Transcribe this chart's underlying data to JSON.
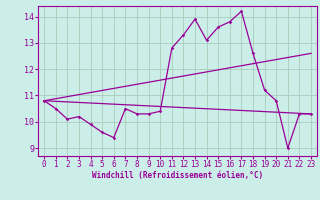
{
  "xlabel": "Windchill (Refroidissement éolien,°C)",
  "ylabel": "",
  "xlim": [
    -0.5,
    23.5
  ],
  "ylim": [
    8.7,
    14.4
  ],
  "yticks": [
    9,
    10,
    11,
    12,
    13,
    14
  ],
  "xticks": [
    0,
    1,
    2,
    3,
    4,
    5,
    6,
    7,
    8,
    9,
    10,
    11,
    12,
    13,
    14,
    15,
    16,
    17,
    18,
    19,
    20,
    21,
    22,
    23
  ],
  "bg_color": "#cceee8",
  "grid_color": "#aaccbb",
  "line_color": "#990099",
  "line1_x": [
    0,
    1,
    2,
    3,
    4,
    5,
    6,
    7,
    8,
    9,
    10,
    11,
    12,
    13,
    14,
    15,
    16,
    17,
    18,
    19,
    20,
    21,
    22,
    23
  ],
  "line1_y": [
    10.8,
    10.5,
    10.1,
    10.2,
    9.9,
    9.6,
    9.4,
    10.5,
    10.3,
    10.3,
    10.4,
    12.8,
    13.3,
    13.9,
    13.1,
    13.6,
    13.8,
    14.2,
    12.6,
    11.2,
    10.8,
    9.0,
    10.3,
    10.3
  ],
  "line2_x": [
    0,
    23
  ],
  "line2_y": [
    10.8,
    10.3
  ],
  "line3_x": [
    0,
    23
  ],
  "line3_y": [
    10.8,
    12.6
  ]
}
